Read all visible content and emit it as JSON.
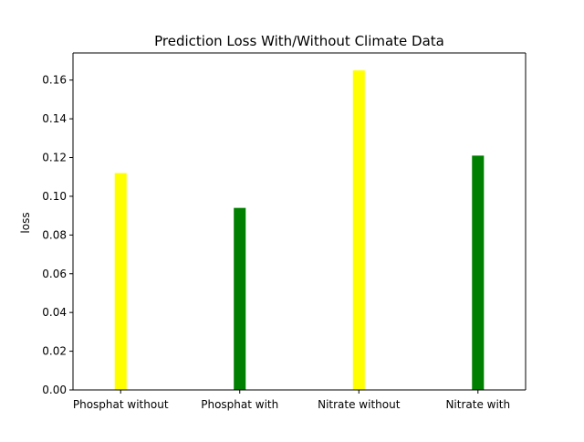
{
  "chart_data": {
    "type": "bar",
    "title": "Prediction Loss With/Without Climate Data",
    "xlabel": "",
    "ylabel": "loss",
    "categories": [
      "Phosphat without",
      "Phosphat with",
      "Nitrate without",
      "Nitrate with"
    ],
    "values": [
      0.112,
      0.094,
      0.165,
      0.121
    ],
    "bar_colors": [
      "#ffff00",
      "#008000",
      "#ffff00",
      "#008000"
    ],
    "ylim": [
      0,
      0.174
    ],
    "yticks": [
      0.0,
      0.02,
      0.04,
      0.06,
      0.08,
      0.1,
      0.12,
      0.14,
      0.16
    ],
    "ytick_labels": [
      "0.00",
      "0.02",
      "0.04",
      "0.06",
      "0.08",
      "0.10",
      "0.12",
      "0.14",
      "0.16"
    ],
    "grid": false,
    "legend": "none"
  }
}
